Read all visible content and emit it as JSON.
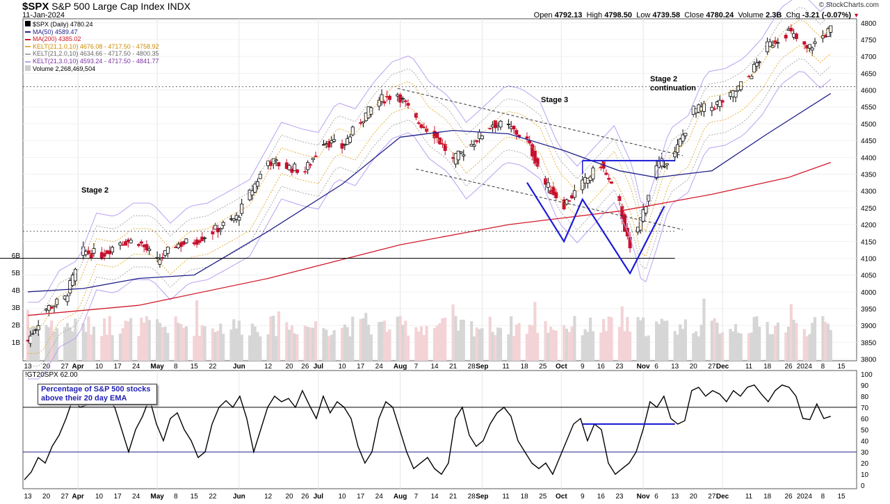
{
  "header": {
    "symbol": "$SPX",
    "name": "S&P 500 Large Cap Index",
    "exchange": "INDX",
    "date": "11-Jan-2024",
    "open_label": "Open",
    "open": "4792.13",
    "high_label": "High",
    "high": "4798.50",
    "low_label": "Low",
    "low": "4739.58",
    "close_label": "Close",
    "close": "4780.24",
    "volume_label": "Volume",
    "volume": "2.3B",
    "chg_label": "Chg",
    "chg": "-3.21 (-0.07%)",
    "brand": "© StockCharts.com"
  },
  "legend": [
    {
      "text": "$SPX (Daily) 4780.24",
      "color": "#000000"
    },
    {
      "text": "MA(50) 4589.47",
      "color": "#1f1f8a"
    },
    {
      "text": "MA(200) 4385.02",
      "color": "#d11a2a"
    },
    {
      "text": "KELT(21,1.0,10) 4676.08 - 4717.50 - 4758.92",
      "color": "#cc8a00"
    },
    {
      "text": "KELT(21,2.0,10) 4634.66 - 4717.50 - 4800.35",
      "color": "#888888"
    },
    {
      "text": "KELT(21,3.0,10) 4593.24 - 4717.50 - 4841.77",
      "color": "#7a2fa0"
    },
    {
      "text": "Volume 2,268,469,504",
      "color": "#333333"
    }
  ],
  "annotations": {
    "stage2_left": "Stage 2",
    "stage3": "Stage 3",
    "stage2_cont": "Stage 2\ncontinuation",
    "callout": "Percentage of S&P 500 stocks above their 20 day EMA"
  },
  "indicator_label": "!GT20SPX 62.00",
  "colors": {
    "up": "#000000",
    "down": "#c8102e",
    "ma50": "#1f1f8a",
    "ma200": "#d11a2a",
    "kelt1": "#e0b040",
    "kelt2": "#aaaaaa",
    "kelt3": "#b9a0f0",
    "vol_up": "#d6d6d6",
    "vol_down": "#f3d3d6",
    "trend": "#1a1ad6"
  },
  "chart_data": [
    {
      "type": "candlestick",
      "title": "S&P 500 Large Cap Index (Daily)",
      "y_ticks": [
        3800,
        3850,
        3900,
        3950,
        4000,
        4050,
        4100,
        4150,
        4200,
        4250,
        4300,
        4350,
        4400,
        4450,
        4500,
        4550,
        4600,
        4650,
        4700,
        4750,
        4800
      ],
      "ylim": [
        3795,
        4812
      ],
      "volume_ticks": [
        "1B",
        "2B",
        "3B",
        "4B",
        "5B",
        "6B"
      ],
      "x_tick_labels": [
        "13",
        "20",
        "27",
        "Apr",
        "10",
        "17",
        "24",
        "May",
        "8",
        "15",
        "22",
        "Jun",
        "12",
        "20",
        "26",
        "Jul",
        "10",
        "17",
        "24",
        "Aug",
        "7",
        "14",
        "21",
        "28",
        "Sep",
        "11",
        "18",
        "25",
        "Oct",
        "9",
        "16",
        "23",
        "Nov",
        "6",
        "13",
        "20",
        "27",
        "Dec",
        "11",
        "18",
        "26",
        "2024",
        "8",
        "15"
      ],
      "close_path": [
        [
          "Mar 13",
          3855
        ],
        [
          "Mar 20",
          3950
        ],
        [
          "Mar 27",
          3980
        ],
        [
          "Apr 3",
          4120
        ],
        [
          "Apr 10",
          4110
        ],
        [
          "Apr 17",
          4150
        ],
        [
          "Apr 24",
          4150
        ],
        [
          "May 1",
          4090
        ],
        [
          "May 8",
          4140
        ],
        [
          "May 15",
          4150
        ],
        [
          "May 22",
          4180
        ],
        [
          "May 31",
          4220
        ],
        [
          "Jun 12",
          4390
        ],
        [
          "Jun 20",
          4370
        ],
        [
          "Jun 26",
          4360
        ],
        [
          "Jul 3",
          4450
        ],
        [
          "Jul 10",
          4430
        ],
        [
          "Jul 17",
          4510
        ],
        [
          "Jul 24",
          4570
        ],
        [
          "Jul 31",
          4590
        ],
        [
          "Aug 7",
          4510
        ],
        [
          "Aug 14",
          4470
        ],
        [
          "Aug 21",
          4390
        ],
        [
          "Aug 28",
          4440
        ],
        [
          "Sep 5",
          4500
        ],
        [
          "Sep 11",
          4490
        ],
        [
          "Sep 18",
          4450
        ],
        [
          "Sep 25",
          4320
        ],
        [
          "Oct 2",
          4260
        ],
        [
          "Oct 9",
          4320
        ],
        [
          "Oct 16",
          4380
        ],
        [
          "Oct 23",
          4260
        ],
        [
          "Oct 27",
          4120
        ],
        [
          "Nov 1",
          4240
        ],
        [
          "Nov 6",
          4370
        ],
        [
          "Nov 13",
          4410
        ],
        [
          "Nov 20",
          4540
        ],
        [
          "Nov 27",
          4550
        ],
        [
          "Dec 4",
          4580
        ],
        [
          "Dec 11",
          4640
        ],
        [
          "Dec 18",
          4730
        ],
        [
          "Dec 26",
          4775
        ],
        [
          "Jan 2",
          4720
        ],
        [
          "Jan 11",
          4780
        ]
      ],
      "ma50_path": [
        [
          "Mar 13",
          4000
        ],
        [
          "Apr 3",
          4010
        ],
        [
          "Apr 24",
          4040
        ],
        [
          "May 15",
          4050
        ],
        [
          "Jun 12",
          4180
        ],
        [
          "Jul 10",
          4320
        ],
        [
          "Aug 1",
          4460
        ],
        [
          "Aug 21",
          4480
        ],
        [
          "Sep 11",
          4470
        ],
        [
          "Oct 2",
          4420
        ],
        [
          "Oct 23",
          4360
        ],
        [
          "Nov 6",
          4340
        ],
        [
          "Nov 27",
          4360
        ],
        [
          "Dec 18",
          4470
        ],
        [
          "Jan 11",
          4590
        ]
      ],
      "ma200_path": [
        [
          "Mar 13",
          3930
        ],
        [
          "Apr 24",
          3960
        ],
        [
          "Jun 12",
          4040
        ],
        [
          "Aug 1",
          4140
        ],
        [
          "Sep 11",
          4200
        ],
        [
          "Oct 23",
          4240
        ],
        [
          "Nov 27",
          4290
        ],
        [
          "Dec 26",
          4340
        ],
        [
          "Jan 11",
          4385
        ]
      ],
      "horizontal_levels": [
        4610,
        4180,
        4100,
        4390
      ]
    },
    {
      "type": "line",
      "title": "!GT20SPX",
      "last_value": 62.0,
      "y_ticks": [
        0,
        10,
        20,
        30,
        40,
        50,
        60,
        70,
        80,
        90,
        100
      ],
      "ylim": [
        -3,
        103
      ],
      "reference_lines": [
        70,
        30
      ],
      "x_tick_labels": [
        "13",
        "20",
        "27",
        "Apr",
        "10",
        "17",
        "24",
        "May",
        "8",
        "15",
        "22",
        "Jun",
        "12",
        "20",
        "26",
        "Jul",
        "10",
        "17",
        "24",
        "Aug",
        "7",
        "14",
        "21",
        "28",
        "Sep",
        "11",
        "18",
        "25",
        "Oct",
        "9",
        "16",
        "23",
        "Nov",
        "6",
        "13",
        "20",
        "27",
        "Dec",
        "11",
        "18",
        "26",
        "2024",
        "8",
        "15"
      ],
      "series": [
        {
          "values": [
            5,
            12,
            25,
            20,
            35,
            45,
            60,
            78,
            70,
            72,
            80,
            75,
            78,
            70,
            50,
            30,
            50,
            62,
            78,
            55,
            40,
            60,
            65,
            50,
            40,
            25,
            30,
            55,
            70,
            76,
            70,
            80,
            60,
            30,
            50,
            70,
            80,
            75,
            78,
            70,
            85,
            72,
            60,
            80,
            65,
            75,
            70,
            60,
            35,
            20,
            30,
            60,
            75,
            70,
            50,
            30,
            15,
            20,
            25,
            15,
            10,
            20,
            60,
            70,
            45,
            35,
            40,
            55,
            65,
            70,
            62,
            40,
            30,
            20,
            15,
            20,
            10,
            25,
            40,
            55,
            60,
            40,
            55,
            50,
            20,
            10,
            15,
            20,
            30,
            50,
            75,
            70,
            80,
            60,
            55,
            58,
            85,
            88,
            80,
            85,
            82,
            75,
            85,
            80,
            88,
            90,
            82,
            75,
            85,
            90,
            88,
            80,
            60,
            59,
            73,
            60,
            62
          ]
        }
      ]
    }
  ]
}
